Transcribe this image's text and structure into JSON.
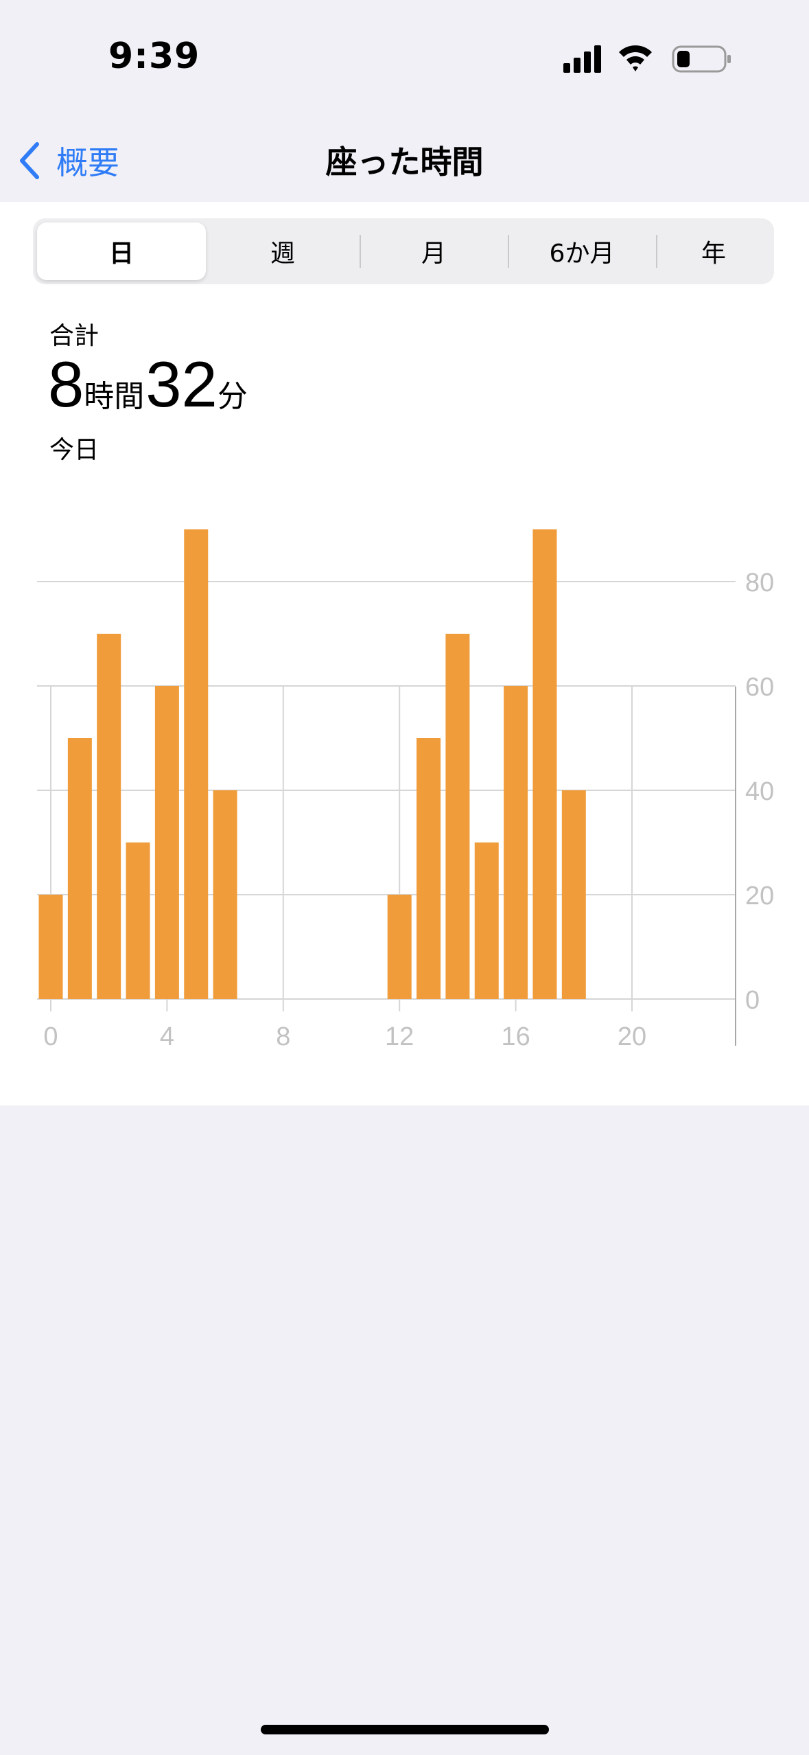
{
  "status_bar": {
    "time": "9:39",
    "icons": [
      "cellular-signal-icon",
      "wifi-icon",
      "battery-icon"
    ]
  },
  "nav": {
    "back_label": "概要",
    "title": "座った時間"
  },
  "segments": {
    "items": [
      "日",
      "週",
      "月",
      "6か月",
      "年"
    ],
    "selected": "日"
  },
  "summary": {
    "label": "合計",
    "hours": "8",
    "hours_unit": "時間",
    "minutes": "32",
    "minutes_unit": "分",
    "date": "今日"
  },
  "colors": {
    "accent": "#2f7cf6",
    "bar": "#f09c3a",
    "grid": "#d6d6d6",
    "axis_label": "#c2c2c2",
    "background": "#f0f0f6"
  },
  "chart_data": {
    "type": "bar",
    "x": [
      0,
      1,
      2,
      3,
      4,
      5,
      6,
      12,
      13,
      14,
      15,
      16,
      17,
      18
    ],
    "values": [
      20,
      50,
      70,
      30,
      60,
      90,
      40,
      20,
      50,
      70,
      30,
      60,
      90,
      40
    ],
    "x_ticks": [
      0,
      4,
      8,
      12,
      16,
      20
    ],
    "y_ticks": [
      0,
      20,
      40,
      60,
      80
    ],
    "xlim": [
      0,
      24
    ],
    "ylim": [
      0,
      100
    ],
    "y_axis_position": "right",
    "grid": true,
    "title": "",
    "xlabel": "",
    "ylabel": ""
  }
}
